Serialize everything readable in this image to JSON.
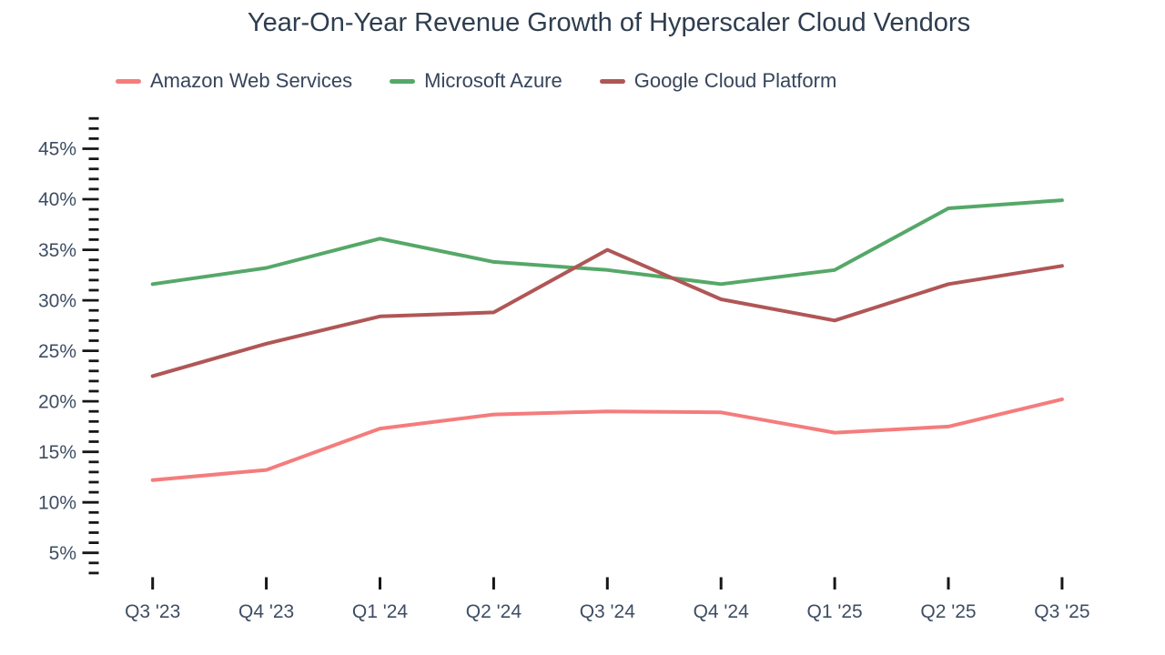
{
  "chart_data": {
    "type": "line",
    "title": "Year-On-Year Revenue Growth of Hyperscaler Cloud Vendors",
    "categories": [
      "Q3 '23",
      "Q4 '23",
      "Q1 '24",
      "Q2 '24",
      "Q3 '24",
      "Q4 '24",
      "Q1 '25",
      "Q2 '25",
      "Q3 '25"
    ],
    "series": [
      {
        "name": "Amazon Web Services",
        "color": "#F57C7C",
        "values": [
          12.2,
          13.2,
          17.3,
          18.7,
          19.0,
          18.9,
          16.9,
          17.5,
          20.2
        ]
      },
      {
        "name": "Microsoft Azure",
        "color": "#55A868",
        "values": [
          31.6,
          33.2,
          36.1,
          33.8,
          33.0,
          31.6,
          33.0,
          39.1,
          39.9
        ]
      },
      {
        "name": "Google Cloud Platform",
        "color": "#B05656",
        "values": [
          22.5,
          25.7,
          28.4,
          28.8,
          35.0,
          30.1,
          28.0,
          31.6,
          33.4
        ]
      }
    ],
    "y_axis": {
      "tick_labels": [
        "5%",
        "10%",
        "15%",
        "20%",
        "25%",
        "30%",
        "35%",
        "40%",
        "45%"
      ],
      "major_ticks": [
        5,
        10,
        15,
        20,
        25,
        30,
        35,
        40,
        45
      ],
      "minor_tick_min": 3,
      "minor_tick_max": 48,
      "unit": "%"
    },
    "xlabel": "",
    "ylabel": "",
    "grid": false,
    "legend_position": "top-left",
    "style": {
      "title_color": "#2E3D4F",
      "axis_label_color": "#3E4D63",
      "legend_label_color": "#36455B",
      "tick_color": "#161616",
      "background": "#FFFFFF"
    }
  }
}
